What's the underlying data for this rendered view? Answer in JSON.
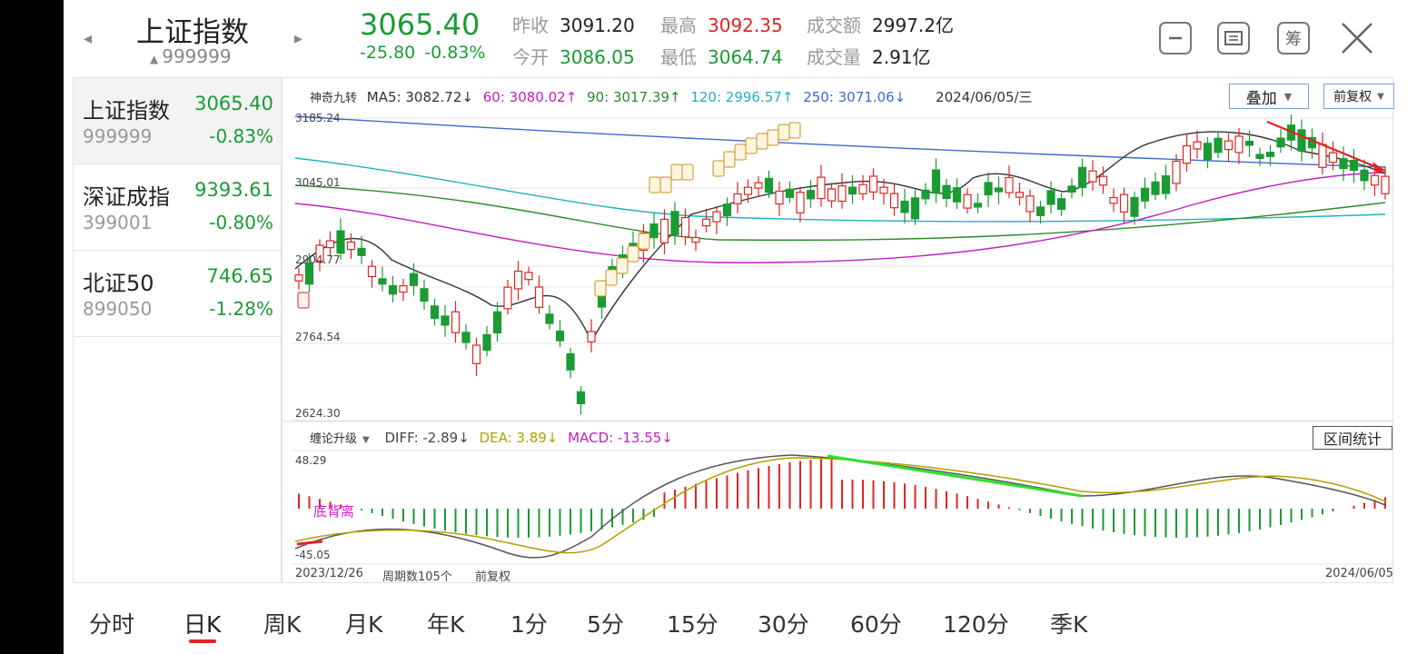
{
  "header": {
    "index_name": "上证指数",
    "index_code": "999999",
    "price": "3065.40",
    "change": "-25.80",
    "change_pct": "-0.83%",
    "quotes": [
      {
        "label": "昨收",
        "value": "3091.20",
        "color": "black"
      },
      {
        "label": "今开",
        "value": "3086.05",
        "color": "green"
      },
      {
        "label": "最高",
        "value": "3092.35",
        "color": "red"
      },
      {
        "label": "最低",
        "value": "3064.74",
        "color": "green"
      },
      {
        "label": "成交额",
        "value": "2997.2亿",
        "color": "black"
      },
      {
        "label": "成交量",
        "value": "2.91亿",
        "color": "black"
      }
    ],
    "buttons": [
      "minimize-icon",
      "screen-icon",
      "chips-icon",
      "close-icon"
    ],
    "chips_glyph": "筹"
  },
  "watchlist": [
    {
      "name": "上证指数",
      "code": "999999",
      "price": "3065.40",
      "pct": "-0.83%"
    },
    {
      "name": "深证成指",
      "code": "399001",
      "price": "9393.61",
      "pct": "-0.80%"
    },
    {
      "name": "北证50",
      "code": "899050",
      "price": "746.65",
      "pct": "-1.28%"
    }
  ],
  "chart": {
    "indicator_name": "神奇九转",
    "ma": [
      {
        "label": "MA5: 3082.72↓",
        "color": "#333333"
      },
      {
        "label": "60: 3080.02↑",
        "color": "#c020c0"
      },
      {
        "label": "90: 3017.39↑",
        "color": "#2a8a2a"
      },
      {
        "label": "120: 2996.57↑",
        "color": "#22b0c0"
      },
      {
        "label": "250: 3071.06↓",
        "color": "#3a6ad0"
      }
    ],
    "date_label": "2024/06/05/三",
    "overlay_button": "叠加",
    "adjust_button": "前复权",
    "price_axis": [
      "3185.24",
      "3045.01",
      "2904.77",
      "2764.54",
      "2624.30"
    ],
    "macd_name": "缠论升级",
    "diff": "DIFF: -2.89↓",
    "dea": "DEA: 3.89↓",
    "macd": "MACD: -13.55↓",
    "range_stats_button": "区间统计",
    "macd_axis": [
      "48.29",
      "-45.05"
    ],
    "divergence_label": "底背离",
    "start_date": "2023/12/26",
    "period_count": "周期数105个",
    "adjust_label": "前复权",
    "end_date": "2024/06/05"
  },
  "tabs": [
    "分时",
    "日K",
    "周K",
    "月K",
    "年K",
    "1分",
    "5分",
    "15分",
    "30分",
    "60分",
    "120分",
    "季K"
  ],
  "active_tab": "日K",
  "colors": {
    "up": "#e02424",
    "down": "#1a9b33",
    "accent": "#e02424"
  }
}
